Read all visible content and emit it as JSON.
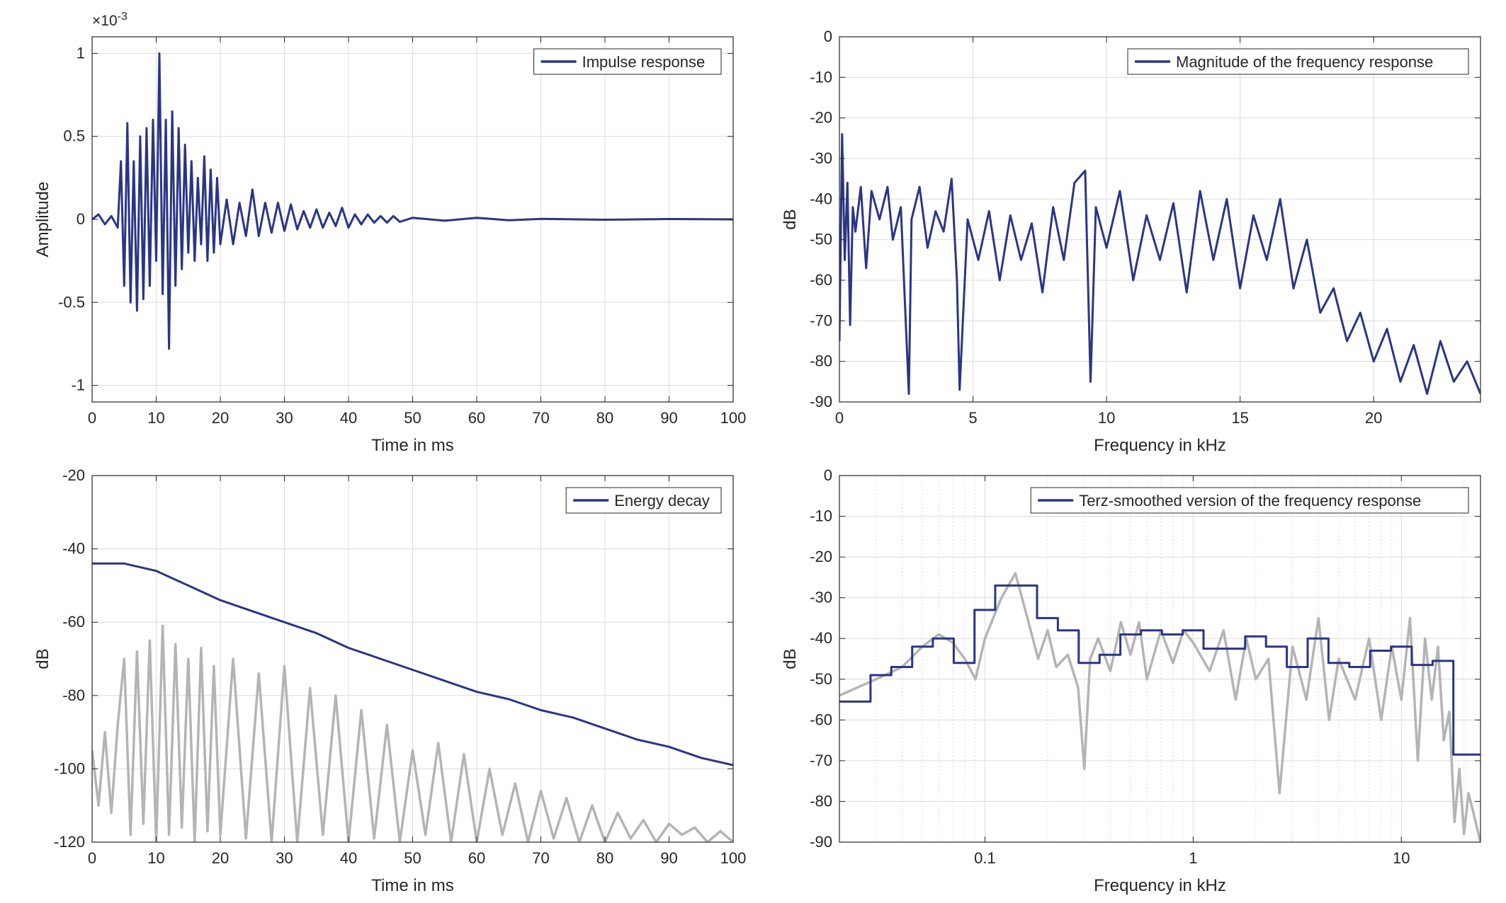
{
  "colors": {
    "series": "#2b3585",
    "secondary": "#b4b4b4",
    "grid": "#dcdcdc",
    "axis": "#262626"
  },
  "chart_data": [
    {
      "id": "impulse",
      "type": "line",
      "xlabel": "Time in ms",
      "ylabel": "Amplitude",
      "xlim": [
        0,
        100
      ],
      "ylim": [
        -1.1,
        1.1
      ],
      "xticks": [
        0,
        10,
        20,
        30,
        40,
        50,
        60,
        70,
        80,
        90,
        100
      ],
      "yticks": [
        -1,
        -0.5,
        0,
        0.5,
        1
      ],
      "ytick_labels": [
        "-1",
        "-0.5",
        "0",
        "0.5",
        "1"
      ],
      "exponent_label": "×10",
      "exponent_power": "-3",
      "grid": true,
      "legend_position": "top-right",
      "series": [
        {
          "name": "Impulse response",
          "color": "#2b3585",
          "x": [
            0,
            1,
            2,
            3,
            4,
            4.5,
            5,
            5.5,
            6,
            6.5,
            7,
            7.5,
            8,
            8.5,
            9,
            9.5,
            10,
            10.5,
            11,
            11.5,
            12,
            12.5,
            13,
            13.5,
            14,
            14.5,
            15,
            15.5,
            16,
            16.5,
            17,
            17.5,
            18,
            18.5,
            19,
            19.5,
            20,
            21,
            22,
            23,
            24,
            25,
            26,
            27,
            28,
            29,
            30,
            31,
            32,
            33,
            34,
            35,
            36,
            37,
            38,
            39,
            40,
            41,
            42,
            43,
            44,
            45,
            46,
            47,
            48,
            50,
            55,
            60,
            65,
            70,
            80,
            90,
            100
          ],
          "y": [
            0.0,
            0.03,
            -0.03,
            0.02,
            -0.05,
            0.35,
            -0.4,
            0.58,
            -0.5,
            0.35,
            -0.55,
            0.5,
            -0.48,
            0.55,
            -0.4,
            0.6,
            -0.25,
            1.0,
            -0.45,
            0.6,
            -0.78,
            0.65,
            -0.4,
            0.55,
            -0.3,
            0.45,
            -0.2,
            0.35,
            -0.25,
            0.25,
            -0.15,
            0.38,
            -0.25,
            0.3,
            -0.2,
            0.25,
            -0.15,
            0.12,
            -0.15,
            0.1,
            -0.1,
            0.18,
            -0.1,
            0.1,
            -0.08,
            0.1,
            -0.07,
            0.09,
            -0.06,
            0.05,
            -0.05,
            0.06,
            -0.05,
            0.04,
            -0.04,
            0.07,
            -0.05,
            0.03,
            -0.03,
            0.03,
            -0.02,
            0.02,
            -0.02,
            0.02,
            -0.015,
            0.01,
            -0.008,
            0.01,
            -0.005,
            0.003,
            -0.002,
            0.002,
            0.0
          ]
        }
      ]
    },
    {
      "id": "magnitude",
      "type": "line",
      "xlabel": "Frequency in kHz",
      "ylabel": "dB",
      "xlim": [
        0,
        24
      ],
      "ylim": [
        -90,
        0
      ],
      "xticks": [
        0,
        5,
        10,
        15,
        20
      ],
      "yticks": [
        0,
        -10,
        -20,
        -30,
        -40,
        -50,
        -60,
        -70,
        -80,
        -90
      ],
      "grid": true,
      "legend_position": "top-right",
      "series": [
        {
          "name": "Magnitude of the frequency response",
          "color": "#2b3585",
          "x": [
            0,
            0.1,
            0.2,
            0.3,
            0.4,
            0.5,
            0.6,
            0.8,
            1.0,
            1.2,
            1.5,
            1.8,
            2.0,
            2.3,
            2.6,
            2.7,
            3.0,
            3.3,
            3.6,
            3.9,
            4.2,
            4.4,
            4.5,
            4.8,
            5.2,
            5.6,
            6.0,
            6.4,
            6.8,
            7.2,
            7.6,
            8.0,
            8.4,
            8.8,
            9.2,
            9.4,
            9.6,
            10.0,
            10.5,
            11.0,
            11.5,
            12.0,
            12.5,
            13.0,
            13.5,
            14.0,
            14.5,
            15.0,
            15.5,
            16.0,
            16.5,
            17.0,
            17.5,
            18.0,
            18.5,
            19.0,
            19.5,
            20.0,
            20.5,
            21.0,
            21.5,
            22.0,
            22.5,
            23.0,
            23.5,
            24.0
          ],
          "y": [
            -75,
            -24,
            -55,
            -36,
            -71,
            -42,
            -48,
            -37,
            -57,
            -38,
            -45,
            -37,
            -50,
            -42,
            -88,
            -45,
            -37,
            -52,
            -43,
            -48,
            -35,
            -60,
            -87,
            -45,
            -55,
            -43,
            -60,
            -44,
            -55,
            -46,
            -63,
            -42,
            -55,
            -36,
            -33,
            -85,
            -42,
            -52,
            -38,
            -60,
            -44,
            -55,
            -41,
            -63,
            -38,
            -55,
            -40,
            -62,
            -44,
            -55,
            -40,
            -62,
            -50,
            -68,
            -62,
            -75,
            -68,
            -80,
            -72,
            -85,
            -76,
            -88,
            -75,
            -85,
            -80,
            -88
          ]
        }
      ]
    },
    {
      "id": "decay",
      "type": "line",
      "xlabel": "Time in ms",
      "ylabel": "dB",
      "xlim": [
        0,
        100
      ],
      "ylim": [
        -120,
        -20
      ],
      "xticks": [
        0,
        10,
        20,
        30,
        40,
        50,
        60,
        70,
        80,
        90,
        100
      ],
      "yticks": [
        -20,
        -40,
        -60,
        -80,
        -100,
        -120
      ],
      "grid": true,
      "legend_position": "top-right",
      "series": [
        {
          "name": "Energy decay",
          "color": "#2b3585",
          "x": [
            0,
            5,
            10,
            15,
            20,
            25,
            30,
            35,
            40,
            45,
            50,
            55,
            60,
            65,
            70,
            75,
            80,
            85,
            90,
            95,
            100
          ],
          "y": [
            -44,
            -44,
            -46,
            -50,
            -54,
            -57,
            -60,
            -63,
            -67,
            -70,
            -73,
            -76,
            -79,
            -81,
            -84,
            -86,
            -89,
            -92,
            -94,
            -97,
            -99
          ]
        },
        {
          "color": "#b4b4b4",
          "x": [
            0,
            1,
            2,
            3,
            4,
            5,
            6,
            7,
            8,
            9,
            10,
            11,
            12,
            13,
            14,
            15,
            16,
            17,
            18,
            19,
            20,
            22,
            24,
            26,
            28,
            30,
            32,
            34,
            36,
            38,
            40,
            42,
            44,
            46,
            48,
            50,
            52,
            54,
            56,
            58,
            60,
            62,
            64,
            66,
            68,
            70,
            72,
            74,
            76,
            78,
            80,
            82,
            84,
            86,
            88,
            90,
            92,
            94,
            96,
            98,
            100
          ],
          "y": [
            -95,
            -110,
            -90,
            -112,
            -88,
            -70,
            -118,
            -68,
            -115,
            -65,
            -120,
            -61,
            -118,
            -66,
            -116,
            -70,
            -120,
            -67,
            -117,
            -72,
            -118,
            -70,
            -119,
            -74,
            -120,
            -72,
            -120,
            -78,
            -118,
            -80,
            -120,
            -84,
            -119,
            -88,
            -120,
            -95,
            -118,
            -93,
            -120,
            -96,
            -120,
            -100,
            -118,
            -104,
            -120,
            -106,
            -119,
            -108,
            -120,
            -110,
            -120,
            -112,
            -119,
            -114,
            -120,
            -115,
            -118,
            -116,
            -120,
            -117,
            -120
          ]
        }
      ]
    },
    {
      "id": "terz",
      "type": "line",
      "xlabel": "Frequency in kHz",
      "ylabel": "dB",
      "xscale": "log",
      "xlim": [
        0.02,
        24
      ],
      "ylim": [
        -90,
        0
      ],
      "xticks": [
        0.1,
        1,
        10
      ],
      "xtick_labels": [
        "0.1",
        "1",
        "10"
      ],
      "yticks": [
        0,
        -10,
        -20,
        -30,
        -40,
        -50,
        -60,
        -70,
        -80,
        -90
      ],
      "grid": true,
      "legend_position": "top-right",
      "series": [
        {
          "name": "Terz-smoothed version of the frequency response",
          "color": "#2b3585",
          "step": true,
          "x": [
            0.02,
            0.0282,
            0.0355,
            0.0447,
            0.0562,
            0.0708,
            0.0891,
            0.112,
            0.141,
            0.178,
            0.224,
            0.282,
            0.355,
            0.447,
            0.562,
            0.708,
            0.891,
            1.122,
            1.413,
            1.778,
            2.239,
            2.818,
            3.548,
            4.467,
            5.623,
            7.079,
            8.913,
            11.22,
            14.13,
            17.78,
            24
          ],
          "y": [
            -55.5,
            -49,
            -47,
            -42,
            -40,
            -46,
            -33,
            -27,
            -27,
            -35,
            -38,
            -46,
            -44,
            -39,
            -38,
            -39,
            -38,
            -42.5,
            -42.5,
            -39.5,
            -42,
            -47,
            -40,
            -46,
            -47,
            -43,
            -42,
            -46.5,
            -45.5,
            -68.5,
            -68.5
          ]
        },
        {
          "color": "#b4b4b4",
          "x": [
            0.02,
            0.03,
            0.04,
            0.05,
            0.06,
            0.07,
            0.08,
            0.09,
            0.1,
            0.12,
            0.14,
            0.16,
            0.18,
            0.2,
            0.22,
            0.25,
            0.28,
            0.3,
            0.32,
            0.35,
            0.4,
            0.45,
            0.5,
            0.55,
            0.6,
            0.7,
            0.8,
            0.9,
            1.0,
            1.2,
            1.4,
            1.6,
            1.8,
            2.0,
            2.3,
            2.6,
            3.0,
            3.5,
            4.0,
            4.5,
            5.0,
            6.0,
            7.0,
            8.0,
            9.0,
            10.0,
            11.0,
            12.0,
            13.0,
            14.0,
            15.0,
            16.0,
            17.0,
            18.0,
            19.0,
            20.0,
            21.0,
            22.0,
            24.0
          ],
          "y": [
            -54,
            -50,
            -47,
            -42,
            -39,
            -41,
            -45,
            -50,
            -40,
            -30,
            -24,
            -35,
            -45,
            -38,
            -47,
            -44,
            -52,
            -72,
            -45,
            -40,
            -48,
            -36,
            -44,
            -36,
            -50,
            -38,
            -46,
            -38,
            -41,
            -48,
            -38,
            -55,
            -40,
            -50,
            -45,
            -78,
            -42,
            -55,
            -35,
            -60,
            -45,
            -55,
            -40,
            -60,
            -42,
            -55,
            -35,
            -70,
            -40,
            -55,
            -42,
            -65,
            -58,
            -85,
            -72,
            -88,
            -78,
            -82,
            -90
          ]
        }
      ]
    }
  ]
}
